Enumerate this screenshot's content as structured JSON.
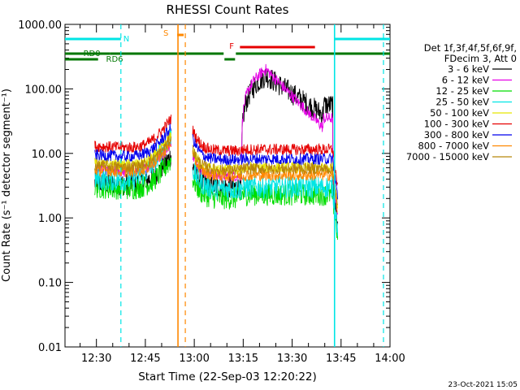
{
  "chart_data": {
    "type": "line",
    "title": "RHESSI Count Rates",
    "xlabel": "Start Time (22-Sep-03 12:20:22)",
    "ylabel": "Count Rate (s⁻¹ detector segment⁻¹)",
    "yscale": "log",
    "ylim": [
      0.01,
      1000
    ],
    "xlim": [
      "12:20:22",
      "14:00"
    ],
    "x_ticks": [
      "12:30",
      "12:45",
      "13:00",
      "13:15",
      "13:30",
      "13:45",
      "14:00"
    ],
    "y_ticks": [
      "0.01",
      "0.10",
      "1.00",
      "10.00",
      "100.00",
      "1000.00"
    ],
    "legend_header": [
      "Det 1f,3f,4f,5f,6f,9f,",
      "FDecim 3, Att 0"
    ],
    "series": [
      {
        "name": "3 - 6 keV",
        "color": "#000000",
        "levels": [
          3.5,
          3.0,
          3.2,
          160,
          40,
          3.0
        ]
      },
      {
        "name": "6 - 12 keV",
        "color": "#e600e6",
        "levels": [
          5.5,
          4.5,
          5.0,
          200,
          25,
          4.5
        ]
      },
      {
        "name": "12 - 25 keV",
        "color": "#00dd00",
        "levels": [
          3.0,
          2.0,
          2.3,
          3.0,
          2.6,
          2.0
        ]
      },
      {
        "name": "25 - 50 keV",
        "color": "#00e5e5",
        "levels": [
          4.0,
          2.8,
          3.0,
          3.2,
          3.0,
          2.6
        ]
      },
      {
        "name": "50 - 100 keV",
        "color": "#e6e600",
        "levels": [
          7.0,
          5.5,
          6.0,
          6.5,
          6.2,
          5.5
        ]
      },
      {
        "name": "100 - 300 keV",
        "color": "#e60000",
        "levels": [
          13,
          11,
          11.5,
          13,
          12,
          11
        ]
      },
      {
        "name": "300 - 800 keV",
        "color": "#0000ee",
        "levels": [
          9.5,
          8.0,
          8.2,
          9.0,
          8.5,
          8.0
        ]
      },
      {
        "name": "800 - 7000 keV",
        "color": "#ff8800",
        "levels": [
          5.5,
          4.5,
          4.6,
          5.2,
          5.0,
          4.5
        ]
      },
      {
        "name": "7000 - 15000 keV",
        "color": "#b8860b",
        "levels": [
          6.5,
          5.5,
          5.8,
          6.3,
          6.0,
          5.5
        ]
      }
    ],
    "annotations": {
      "flags": [
        {
          "label": "N",
          "color": "#00e5e5"
        },
        {
          "label": "S",
          "color": "#ff8800"
        },
        {
          "label": "F",
          "color": "#e60000"
        },
        {
          "label": "RD0",
          "color": "#007700"
        },
        {
          "label": "RD6",
          "color": "#007700"
        }
      ]
    },
    "timestamp": "23-Oct-2021 15:05"
  }
}
